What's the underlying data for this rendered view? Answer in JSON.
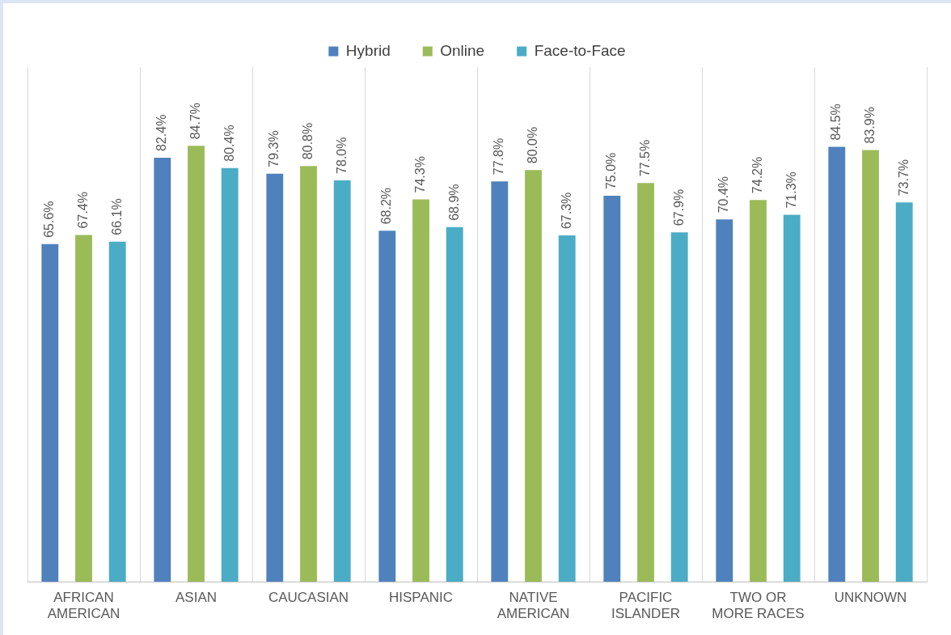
{
  "chart_data": {
    "type": "bar",
    "categories": [
      "AFRICAN AMERICAN",
      "ASIAN",
      "CAUCASIAN",
      "HISPANIC",
      "NATIVE AMERICAN",
      "PACIFIC ISLANDER",
      "TWO OR MORE RACES",
      "UNKNOWN"
    ],
    "series": [
      {
        "name": "Hybrid",
        "color": "#4f81bd",
        "values": [
          65.6,
          82.4,
          79.3,
          68.2,
          77.8,
          75.0,
          70.4,
          84.5
        ],
        "value_labels": [
          "65.6%",
          "82.4%",
          "79.3%",
          "68.2%",
          "77.8%",
          "75.0%",
          "70.4%",
          "84.5%"
        ]
      },
      {
        "name": "Online",
        "color": "#9bbb59",
        "values": [
          67.4,
          84.7,
          80.8,
          74.3,
          80.0,
          77.5,
          74.2,
          83.9
        ],
        "value_labels": [
          "67.4%",
          "84.7%",
          "80.8%",
          "74.3%",
          "80.0%",
          "77.5%",
          "74.2%",
          "83.9%"
        ]
      },
      {
        "name": "Face-to-Face",
        "color": "#4bacc6",
        "values": [
          66.1,
          80.4,
          78.0,
          68.9,
          67.3,
          67.9,
          71.3,
          73.7
        ],
        "value_labels": [
          "66.1%",
          "80.4%",
          "78.0%",
          "68.9%",
          "67.3%",
          "67.9%",
          "71.3%",
          "73.7%"
        ]
      }
    ],
    "ylim": [
      0,
      100
    ],
    "grid": "x",
    "legend": "top",
    "tick_labels": "x"
  }
}
